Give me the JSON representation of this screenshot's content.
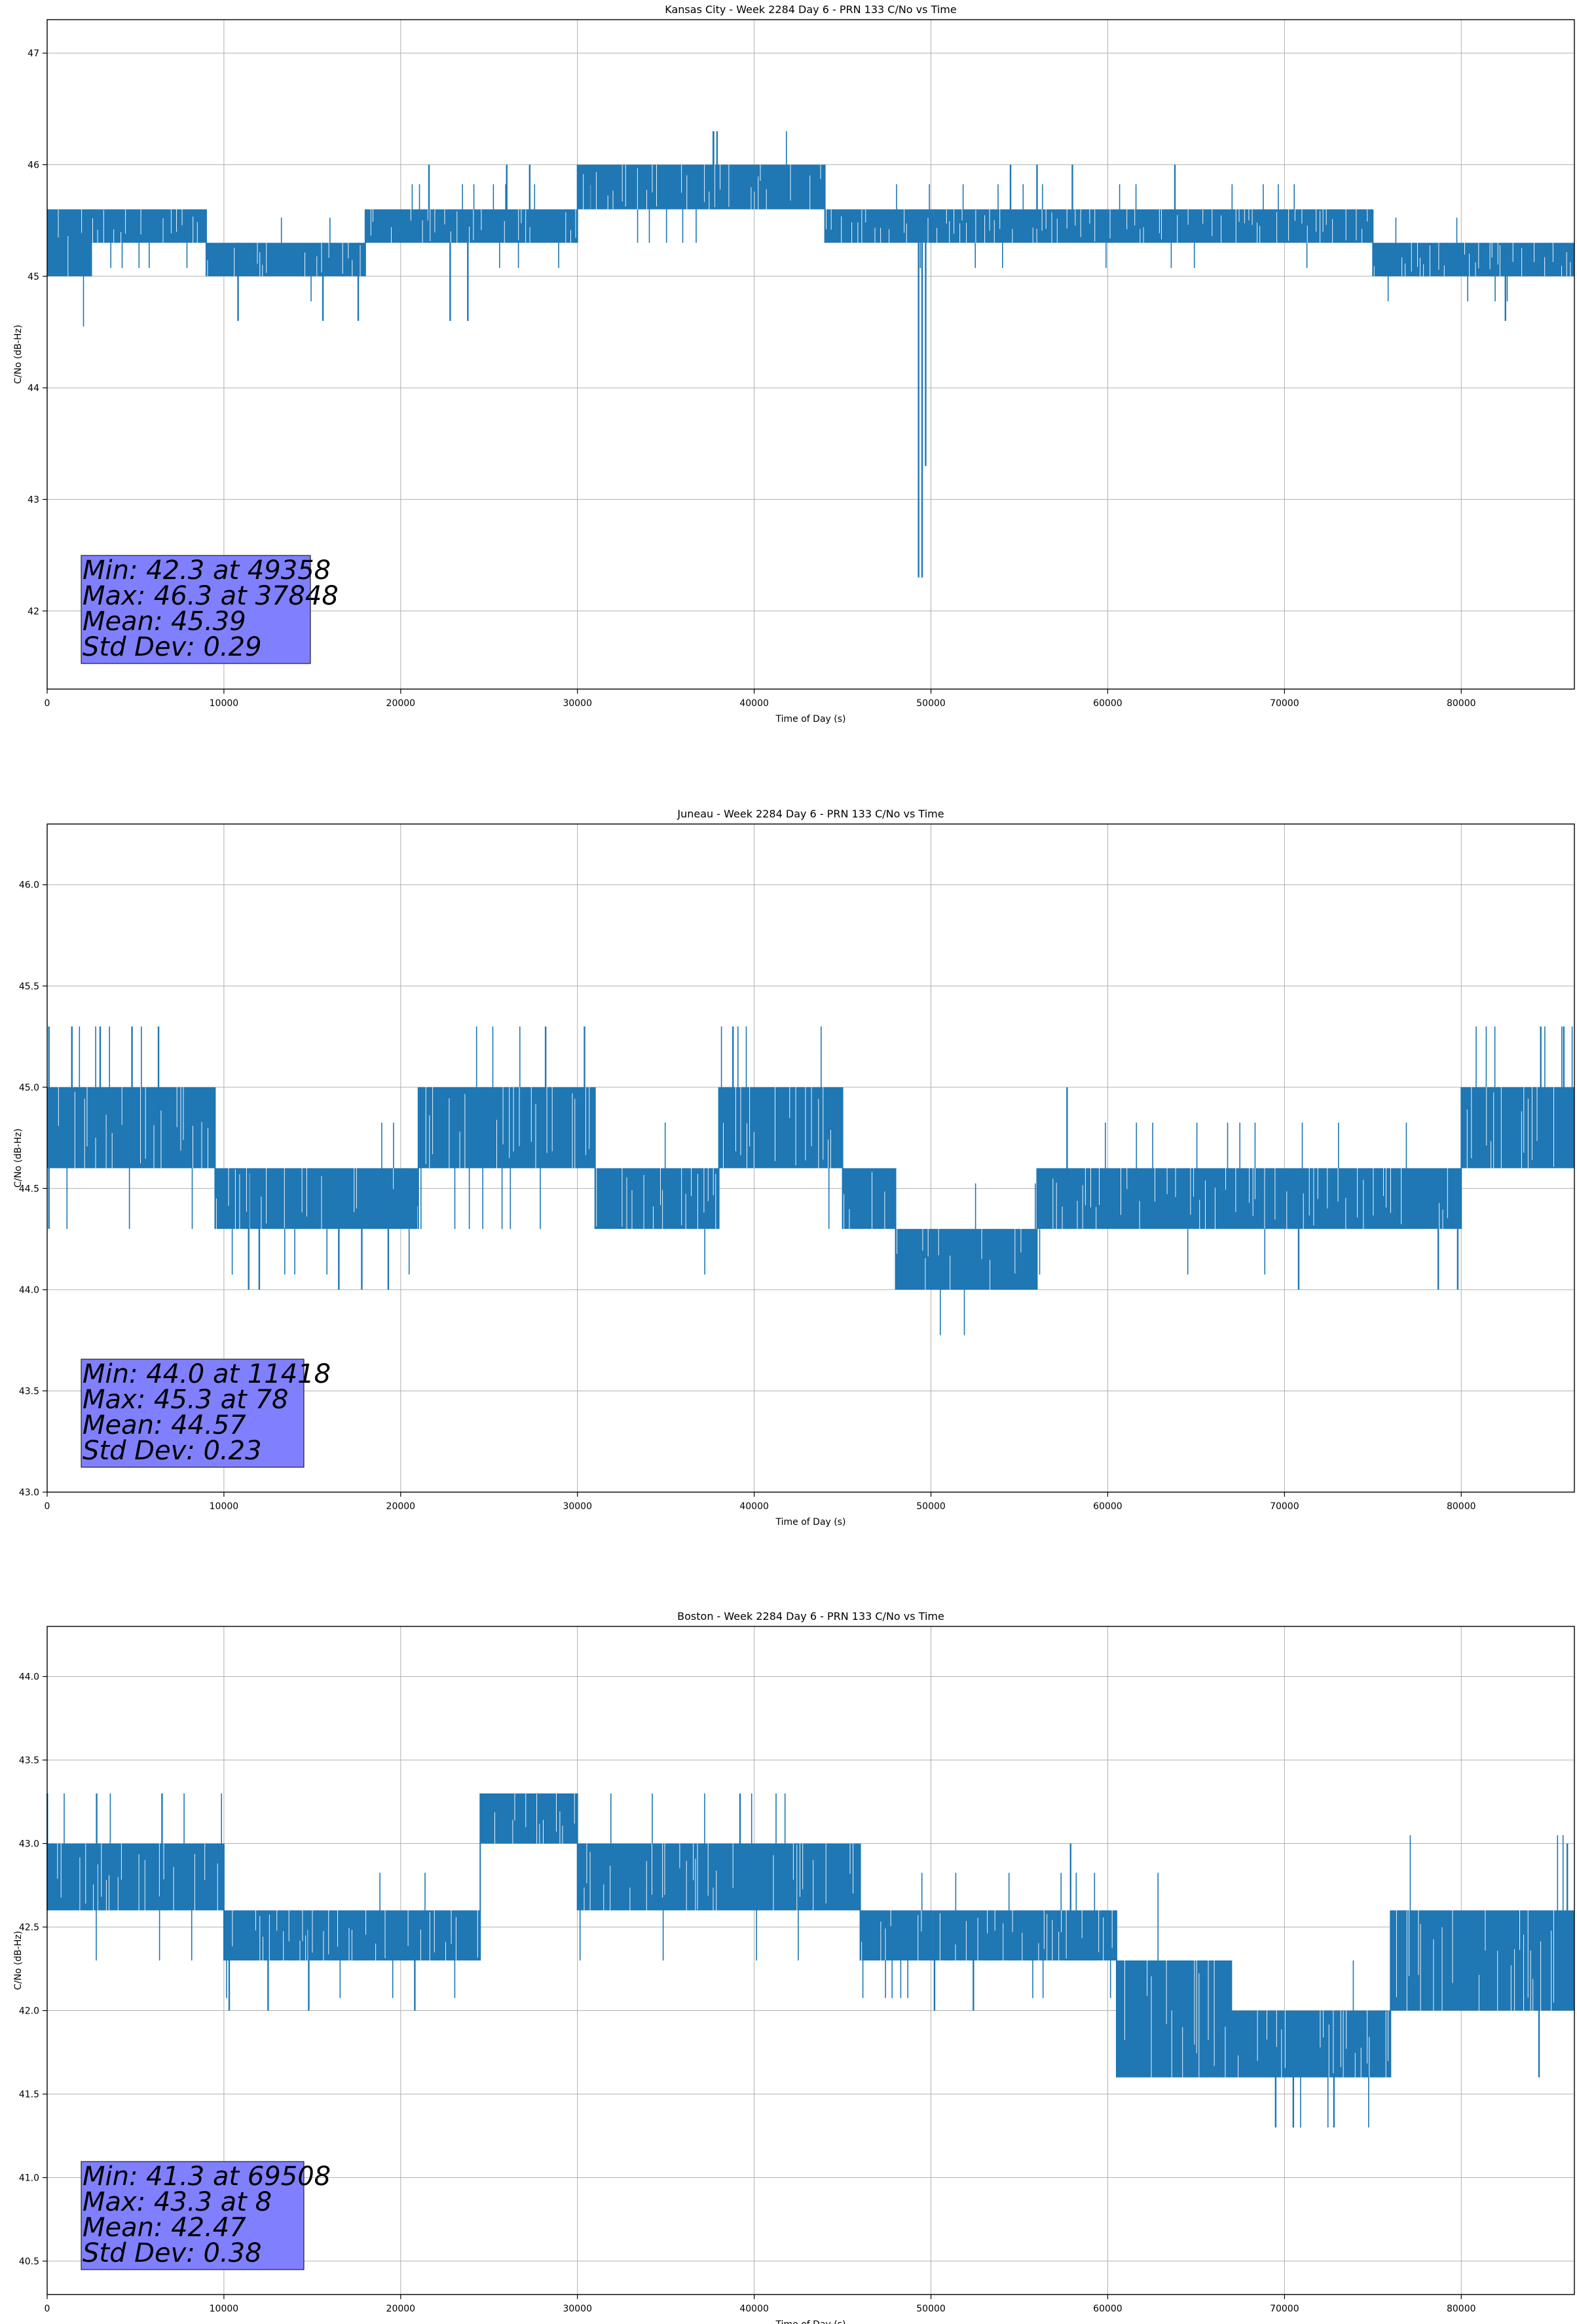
{
  "chart_data": [
    {
      "type": "line",
      "title": "Kansas City - Week 2284 Day 6 - PRN 133 C/No vs Time",
      "xlabel": "Time of Day (s)",
      "ylabel": "C/No (dB-Hz)",
      "xlim": [
        0,
        86400
      ],
      "ylim": [
        41.3,
        47.3
      ],
      "xticks": [
        0,
        10000,
        20000,
        30000,
        40000,
        50000,
        60000,
        70000,
        80000
      ],
      "yticks": [
        42,
        43,
        44,
        45,
        46,
        47
      ],
      "grid": true,
      "color": "#1f77b4",
      "stats": [
        "Min: 42.3 at 49358",
        "Max: 46.3 at 37848",
        "Mean: 45.39",
        "Std Dev: 0.29"
      ],
      "stats_box_color": "#8080ff",
      "series": [
        {
          "segments": [
            {
              "x": [
                0,
                2500
              ],
              "lo": 45.0,
              "hi": 45.6
            },
            {
              "x": [
                2500,
                9000
              ],
              "lo": 45.3,
              "hi": 45.6
            },
            {
              "x": [
                9000,
                18000
              ],
              "lo": 45.0,
              "hi": 45.3
            },
            {
              "x": [
                18000,
                30000
              ],
              "lo": 45.3,
              "hi": 45.6
            },
            {
              "x": [
                30000,
                38000
              ],
              "lo": 45.6,
              "hi": 46.0
            },
            {
              "x": [
                38000,
                44000
              ],
              "lo": 45.6,
              "hi": 46.0
            },
            {
              "x": [
                44000,
                50000
              ],
              "lo": 45.3,
              "hi": 45.6
            },
            {
              "x": [
                50000,
                75000
              ],
              "lo": 45.3,
              "hi": 45.6
            },
            {
              "x": [
                75000,
                86400
              ],
              "lo": 45.0,
              "hi": 45.3
            }
          ],
          "spikes": [
            {
              "x": 10800,
              "lo": 44.6,
              "hi": 45.3
            },
            {
              "x": 15600,
              "lo": 44.6,
              "hi": 45.3
            },
            {
              "x": 17600,
              "lo": 44.6,
              "hi": 45.3
            },
            {
              "x": 21600,
              "lo": 45.3,
              "hi": 46.0
            },
            {
              "x": 22800,
              "lo": 44.6,
              "hi": 45.3
            },
            {
              "x": 23800,
              "lo": 44.6,
              "hi": 45.3
            },
            {
              "x": 26000,
              "lo": 45.6,
              "hi": 46.0
            },
            {
              "x": 27300,
              "lo": 45.6,
              "hi": 46.0
            },
            {
              "x": 30800,
              "lo": 45.6,
              "hi": 46.0
            },
            {
              "x": 37700,
              "lo": 45.6,
              "hi": 46.3
            },
            {
              "x": 37900,
              "lo": 45.6,
              "hi": 46.3
            },
            {
              "x": 49300,
              "lo": 42.3,
              "hi": 45.3
            },
            {
              "x": 49500,
              "lo": 42.3,
              "hi": 45.3
            },
            {
              "x": 49700,
              "lo": 43.3,
              "hi": 45.3
            },
            {
              "x": 54500,
              "lo": 45.6,
              "hi": 46.0
            },
            {
              "x": 56000,
              "lo": 45.6,
              "hi": 46.0
            },
            {
              "x": 58000,
              "lo": 45.6,
              "hi": 46.0
            },
            {
              "x": 63800,
              "lo": 45.6,
              "hi": 46.0
            },
            {
              "x": 82500,
              "lo": 44.6,
              "hi": 45.3
            }
          ]
        }
      ]
    },
    {
      "type": "line",
      "title": "Juneau - Week 2284 Day 6 - PRN 133 C/No vs Time",
      "xlabel": "Time of Day (s)",
      "ylabel": "C/No (dB-Hz)",
      "xlim": [
        0,
        86400
      ],
      "ylim": [
        43.0,
        46.3
      ],
      "xticks": [
        0,
        10000,
        20000,
        30000,
        40000,
        50000,
        60000,
        70000,
        80000
      ],
      "yticks": [
        43.0,
        43.5,
        44.0,
        44.5,
        45.0,
        45.5,
        46.0
      ],
      "grid": true,
      "color": "#1f77b4",
      "stats": [
        "Min: 44.0 at 11418",
        "Max: 45.3 at 78",
        "Mean: 44.57",
        "Std Dev: 0.23"
      ],
      "stats_box_color": "#8080ff",
      "series": [
        {
          "segments": [
            {
              "x": [
                0,
                9500
              ],
              "lo": 44.6,
              "hi": 45.0
            },
            {
              "x": [
                9500,
                21000
              ],
              "lo": 44.3,
              "hi": 44.6
            },
            {
              "x": [
                21000,
                31000
              ],
              "lo": 44.6,
              "hi": 45.0
            },
            {
              "x": [
                31000,
                38000
              ],
              "lo": 44.3,
              "hi": 44.6
            },
            {
              "x": [
                38000,
                45000
              ],
              "lo": 44.6,
              "hi": 45.0
            },
            {
              "x": [
                45000,
                48000
              ],
              "lo": 44.3,
              "hi": 44.6
            },
            {
              "x": [
                48000,
                56000
              ],
              "lo": 44.0,
              "hi": 44.3
            },
            {
              "x": [
                56000,
                66000
              ],
              "lo": 44.3,
              "hi": 44.6
            },
            {
              "x": [
                66000,
                80000
              ],
              "lo": 44.3,
              "hi": 44.6
            },
            {
              "x": [
                80000,
                86400
              ],
              "lo": 44.6,
              "hi": 45.0
            }
          ],
          "spikes": [
            {
              "x": 100,
              "lo": 44.3,
              "hi": 45.3
            },
            {
              "x": 1400,
              "lo": 44.6,
              "hi": 45.3
            },
            {
              "x": 3000,
              "lo": 44.6,
              "hi": 45.3
            },
            {
              "x": 4800,
              "lo": 44.6,
              "hi": 45.3
            },
            {
              "x": 6300,
              "lo": 44.6,
              "hi": 45.3
            },
            {
              "x": 11400,
              "lo": 44.0,
              "hi": 44.6
            },
            {
              "x": 12000,
              "lo": 44.0,
              "hi": 44.6
            },
            {
              "x": 16500,
              "lo": 44.0,
              "hi": 44.3
            },
            {
              "x": 17800,
              "lo": 44.0,
              "hi": 44.3
            },
            {
              "x": 19300,
              "lo": 44.0,
              "hi": 44.3
            },
            {
              "x": 28200,
              "lo": 44.6,
              "hi": 45.3
            },
            {
              "x": 30400,
              "lo": 44.6,
              "hi": 45.3
            },
            {
              "x": 38800,
              "lo": 44.6,
              "hi": 45.3
            },
            {
              "x": 57700,
              "lo": 44.3,
              "hi": 45.0
            },
            {
              "x": 70800,
              "lo": 44.0,
              "hi": 44.3
            },
            {
              "x": 78700,
              "lo": 44.0,
              "hi": 44.3
            },
            {
              "x": 79800,
              "lo": 44.0,
              "hi": 44.3
            },
            {
              "x": 84500,
              "lo": 44.6,
              "hi": 45.3
            },
            {
              "x": 85800,
              "lo": 44.6,
              "hi": 45.3
            }
          ]
        }
      ]
    },
    {
      "type": "line",
      "title": "Boston - Week 2284 Day 6 - PRN 133 C/No vs Time",
      "xlabel": "Time of Day (s)",
      "ylabel": "C/No (dB-Hz)",
      "xlim": [
        0,
        86400
      ],
      "ylim": [
        40.3,
        44.3
      ],
      "xticks": [
        0,
        10000,
        20000,
        30000,
        40000,
        50000,
        60000,
        70000,
        80000
      ],
      "yticks": [
        40.5,
        41.0,
        41.5,
        42.0,
        42.5,
        43.0,
        43.5,
        44.0
      ],
      "grid": true,
      "color": "#1f77b4",
      "stats": [
        "Min: 41.3 at 69508",
        "Max: 43.3 at 8",
        "Mean: 42.47",
        "Std Dev: 0.38"
      ],
      "stats_box_color": "#8080ff",
      "series": [
        {
          "segments": [
            {
              "x": [
                0,
                10000
              ],
              "lo": 42.6,
              "hi": 43.0
            },
            {
              "x": [
                10000,
                24500
              ],
              "lo": 42.3,
              "hi": 42.6
            },
            {
              "x": [
                24500,
                30000
              ],
              "lo": 43.0,
              "hi": 43.3
            },
            {
              "x": [
                30000,
                46000
              ],
              "lo": 42.6,
              "hi": 43.0
            },
            {
              "x": [
                46000,
                60500
              ],
              "lo": 42.3,
              "hi": 42.6
            },
            {
              "x": [
                60500,
                67000
              ],
              "lo": 41.6,
              "hi": 42.3
            },
            {
              "x": [
                67000,
                76000
              ],
              "lo": 41.6,
              "hi": 42.0
            },
            {
              "x": [
                76000,
                86400
              ],
              "lo": 42.0,
              "hi": 42.6
            }
          ],
          "spikes": [
            {
              "x": 10,
              "lo": 42.6,
              "hi": 43.3
            },
            {
              "x": 2800,
              "lo": 42.6,
              "hi": 43.3
            },
            {
              "x": 6500,
              "lo": 42.6,
              "hi": 43.3
            },
            {
              "x": 10300,
              "lo": 42.0,
              "hi": 42.6
            },
            {
              "x": 12500,
              "lo": 42.0,
              "hi": 42.6
            },
            {
              "x": 14800,
              "lo": 42.0,
              "hi": 42.6
            },
            {
              "x": 20800,
              "lo": 42.0,
              "hi": 42.6
            },
            {
              "x": 26800,
              "lo": 43.0,
              "hi": 43.3
            },
            {
              "x": 39200,
              "lo": 43.0,
              "hi": 43.3
            },
            {
              "x": 50200,
              "lo": 42.0,
              "hi": 42.6
            },
            {
              "x": 52400,
              "lo": 42.0,
              "hi": 42.6
            },
            {
              "x": 57900,
              "lo": 42.6,
              "hi": 43.0
            },
            {
              "x": 69500,
              "lo": 41.3,
              "hi": 41.6
            },
            {
              "x": 70500,
              "lo": 41.3,
              "hi": 41.6
            },
            {
              "x": 72800,
              "lo": 41.3,
              "hi": 41.6
            },
            {
              "x": 84400,
              "lo": 41.6,
              "hi": 42.3
            },
            {
              "x": 86000,
              "lo": 42.3,
              "hi": 43.0
            }
          ]
        }
      ]
    }
  ]
}
